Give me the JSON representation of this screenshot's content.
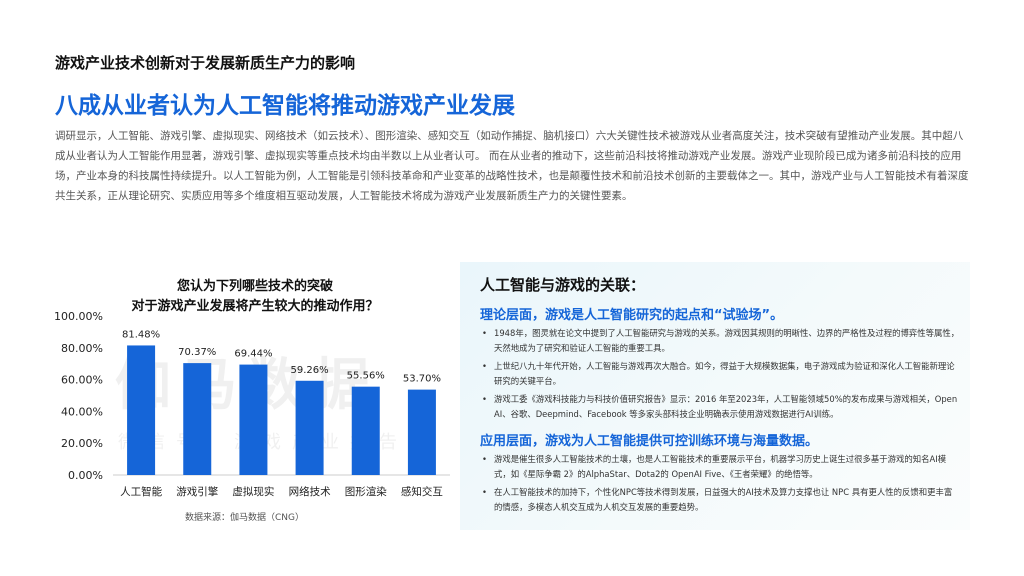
{
  "header": {
    "subtitle": "游戏产业技术创新对于发展新质生产力的影响",
    "headline": "八成从业者认为人工智能将推动游戏产业发展",
    "intro": "调研显示，人工智能、游戏引擎、虚拟现实、网络技术（如云技术）、图形渲染、感知交互（如动作捕捉、脑机接口）六大关键性技术被游戏从业者高度关注，技术突破有望推动产业发展。其中超八成从业者认为人工智能作用显著，游戏引擎、虚拟现实等重点技术均由半数以上从业者认可。 而在从业者的推动下，这些前沿科技将推动游戏产业发展。游戏产业现阶段已成为诸多前沿科技的应用场，产业本身的科技属性持续提升。以人工智能为例，人工智能是引领科技革命和产业变革的战略性技术，也是颠覆性技术和前沿技术创新的主要载体之一。其中，游戏产业与人工智能技术有着深度共生关系，正从理论研究、实质应用等多个维度相互驱动发展，人工智能技术将成为游戏产业发展新质生产力的关键性要素。"
  },
  "chart_title": {
    "line1": "您认为下列哪些技术的突破",
    "line2": "对于游戏产业发展将产生较大的推动作用？"
  },
  "chart_data": {
    "type": "bar",
    "title": "您认为下列哪些技术的突破对于游戏产业发展将产生较大的推动作用？",
    "categories": [
      "人工智能",
      "游戏引擎",
      "虚拟现实",
      "网络技术",
      "图形渲染",
      "感知交互"
    ],
    "values": [
      81.48,
      70.37,
      69.44,
      59.26,
      55.56,
      53.7
    ],
    "value_labels": [
      "81.48%",
      "70.37%",
      "69.44%",
      "59.26%",
      "55.56%",
      "53.70%"
    ],
    "ylim": [
      0,
      100
    ],
    "yticks": [
      "0.00%",
      "20.00%",
      "40.00%",
      "60.00%",
      "80.00%",
      "100.00%"
    ],
    "ytick_values": [
      0,
      20,
      40,
      60,
      80,
      100
    ],
    "bar_color": "#1565d8",
    "grid": false,
    "xlabel": "",
    "ylabel": ""
  },
  "source": "数据来源：伽马数据（CNG）",
  "watermark": {
    "main": "伽马数据",
    "sub": "微信号：游戏产业报告"
  },
  "panel": {
    "title": "人工智能与游戏的关联：",
    "theory": {
      "heading": "理论层面，游戏是人工智能研究的起点和“试验场”。",
      "bullets": [
        "1948年，图灵就在论文中提到了人工智能研究与游戏的关系。游戏因其规则的明晰性、边界的严格性及过程的博弈性等属性，天然地成为了研究和验证人工智能的重要工具。",
        "上世纪八九十年代开始，人工智能与游戏再次大融合。如今，得益于大规模数据集，电子游戏成为验证和深化人工智能新理论研究的关键平台。",
        "游戏工委《游戏科技能力与科技价值研究报告》显示：2016 年至2023年，人工智能领域50%的发布成果与游戏相关，Open AI、谷歌、Deepmind、Facebook 等多家头部科技企业明确表示使用游戏数据进行AI训练。"
      ]
    },
    "application": {
      "heading": "应用层面，游戏为人工智能提供可控训练环境与海量数据。",
      "bullets": [
        "游戏是催生很多人工智能技术的土壤，也是人工智能技术的重要展示平台，机器学习历史上诞生过很多基于游戏的知名AI模式，如《星际争霸 2》的AlphaStar、Dota2的 OpenAI Five、《王者荣耀》的绝悟等。",
        "在人工智能技术的加持下，个性化NPC等技术得到发展，日益强大的AI技术及算力支撑也让 NPC 具有更人性的反馈和更丰富的情感，多模态人机交互成为人机交互发展的重要趋势。"
      ]
    }
  }
}
